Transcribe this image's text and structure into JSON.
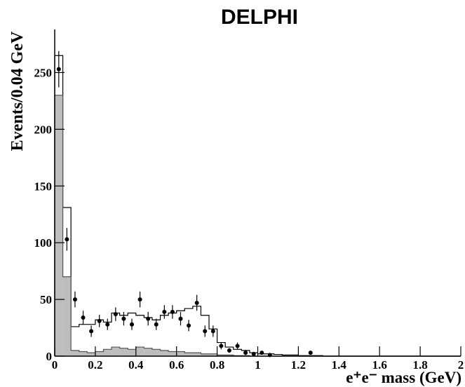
{
  "chart_data": {
    "type": "histogram",
    "title": "DELPHI",
    "x_label": "e⁺e⁻ mass (GeV)",
    "y_label": "Events/0.04 GeV",
    "bins": [
      0,
      0.04,
      0.08,
      0.12,
      0.16,
      0.2,
      0.24,
      0.28,
      0.32,
      0.36,
      0.4,
      0.44,
      0.48,
      0.52,
      0.56,
      0.6,
      0.64,
      0.68,
      0.72,
      0.76,
      0.8,
      0.84,
      0.88,
      0.92,
      0.96,
      1,
      1.04,
      1.08,
      1.12,
      1.16,
      1.2,
      1.24,
      1.28,
      1.32,
      1.36,
      1.4,
      1.44,
      1.48,
      1.52,
      1.56,
      1.6,
      1.64,
      1.68,
      1.72,
      1.76,
      1.8,
      1.84,
      1.88,
      1.92,
      1.96,
      2
    ],
    "series": [
      {
        "color": "#ffffff",
        "values": [
          265,
          131,
          26,
          28,
          28,
          32,
          30,
          38,
          36,
          38,
          36,
          34,
          32,
          36,
          38,
          40,
          42,
          44,
          36,
          24,
          12,
          8,
          6,
          5,
          3,
          2,
          2,
          1.5,
          1,
          1,
          0.5,
          0.5,
          0.5,
          0,
          0,
          0,
          0,
          0,
          0,
          0,
          0,
          0,
          0,
          0,
          0,
          0,
          0,
          0,
          0,
          0
        ]
      },
      {
        "color": "#bdbdbd",
        "values": [
          230,
          70,
          5,
          4,
          3,
          4,
          6,
          8,
          7,
          6,
          8,
          7,
          6,
          5,
          4,
          4,
          3,
          3,
          2,
          2,
          1,
          1,
          0.5,
          0.5,
          0,
          0,
          0,
          0,
          0,
          0,
          0,
          0,
          0,
          0,
          0,
          0,
          0,
          0,
          0,
          0,
          0,
          0,
          0,
          0,
          0,
          0,
          0,
          0,
          0,
          0
        ]
      }
    ],
    "points": {
      "color": "#000000",
      "x": [
        0.02,
        0.06,
        0.1,
        0.14,
        0.18,
        0.22,
        0.26,
        0.3,
        0.34,
        0.38,
        0.42,
        0.46,
        0.5,
        0.54,
        0.58,
        0.62,
        0.66,
        0.7,
        0.74,
        0.78,
        0.82,
        0.86,
        0.9,
        0.94,
        0.98,
        1.02,
        1.06,
        1.26
      ],
      "values": [
        253,
        103,
        50,
        34,
        22,
        31,
        28,
        37,
        33,
        28,
        50,
        33,
        28,
        39,
        39,
        33,
        27,
        47,
        22,
        22,
        9,
        5,
        9,
        3,
        2,
        3,
        1,
        3
      ],
      "errors": [
        16,
        10,
        7,
        6,
        5,
        5.5,
        5,
        6,
        6,
        5,
        7,
        6,
        5,
        6,
        6,
        6,
        5,
        7,
        5,
        5,
        3,
        2,
        3,
        2,
        1.5,
        1.5,
        1,
        1.7
      ]
    },
    "xlim": [
      0,
      2
    ],
    "ylim": [
      0,
      288
    ],
    "xticks": [
      0,
      0.2,
      0.4,
      0.6,
      0.8,
      1,
      1.2,
      1.4,
      1.6,
      1.8,
      2
    ],
    "yticks": [
      0,
      50,
      100,
      150,
      200,
      250
    ]
  }
}
